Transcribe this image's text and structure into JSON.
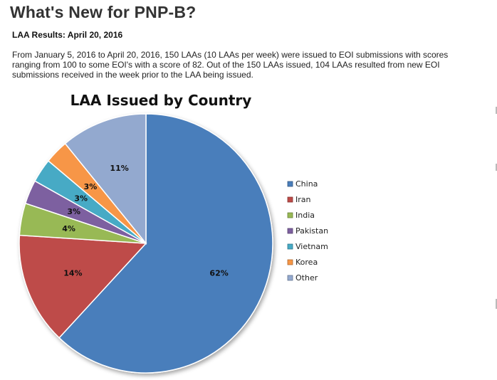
{
  "header": {
    "title": "What's New for PNP-B?",
    "results_heading": "LAA Results: April 20, 2016",
    "intro_lines": [
      "From January 5, 2016 to April 20, 2016, 150 LAAs (10 LAAs per week) were issued to EOI submissions with scores",
      "ranging from 100 to some EOI's with a score of 82.  Out of the 150 LAAs issued, 104 LAAs resulted from new EOI",
      "submissions received in the week prior to the LAA being issued."
    ]
  },
  "chart_data": {
    "type": "pie",
    "title": "LAA Issued by Country",
    "legend_position": "right",
    "start": "12 o'clock",
    "direction": "clockwise",
    "categories": [
      "China",
      "Iran",
      "India",
      "Pakistan",
      "Vietnam",
      "Korea",
      "Other"
    ],
    "values": [
      62,
      14,
      4,
      3,
      3,
      3,
      11
    ],
    "labels": [
      "62%",
      "14%",
      "4%",
      "3%",
      "3%",
      "3%",
      "11%"
    ],
    "colors": [
      "#4a7ebb",
      "#be4b48",
      "#98b954",
      "#7d60a0",
      "#46aac5",
      "#f79646",
      "#93a9cf"
    ]
  }
}
